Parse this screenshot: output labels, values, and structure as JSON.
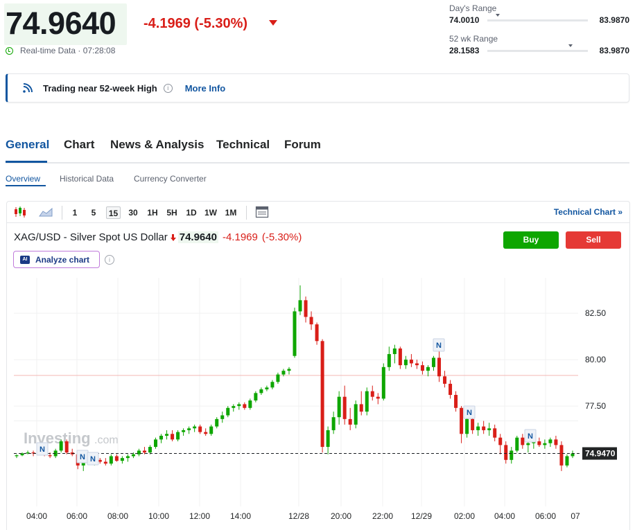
{
  "quote": {
    "price": "74.9640",
    "change": "-4.1969 (-5.30%)",
    "realtime": "Real-time Data · 07:28:08"
  },
  "day_range": {
    "label": "Day's Range",
    "low": "74.0010",
    "high": "83.9870",
    "position": 0.1
  },
  "wk52_range": {
    "label": "52 wk Range",
    "low": "28.1583",
    "high": "83.9870",
    "position": 0.83
  },
  "alert": {
    "text": "Trading near 52-week High",
    "link": "More Info"
  },
  "tabs": [
    "General",
    "Chart",
    "News & Analysis",
    "Technical",
    "Forum"
  ],
  "subtabs": [
    "Overview",
    "Historical Data",
    "Currency Converter"
  ],
  "toolbar": {
    "intervals": [
      "1",
      "5",
      "15",
      "30",
      "1H",
      "5H",
      "1D",
      "1W",
      "1M"
    ],
    "active_interval": "15",
    "technical_link": "Technical Chart »"
  },
  "instrument": {
    "name": "XAG/USD - Silver Spot US Dollar",
    "price": "74.9640",
    "change": "-4.1969",
    "change_pct": "(-5.30%)"
  },
  "buttons": {
    "buy": "Buy",
    "sell": "Sell",
    "analyze": "Analyze chart",
    "ai_badge": "AI"
  },
  "watermark": {
    "brand": "Investing",
    "suffix": ".com"
  },
  "colors": {
    "up": "#0ea600",
    "down": "#d91e18",
    "accent": "#1256a0"
  },
  "chart_data": {
    "type": "candlestick",
    "y_ticks": [
      "82.50",
      "80.00",
      "77.50"
    ],
    "y_tick_values": [
      82.5,
      80.0,
      77.5
    ],
    "x_ticks": [
      "04:00",
      "06:00",
      "08:00",
      "10:00",
      "12:00",
      "14:00",
      "12/28",
      "20:00",
      "22:00",
      "12/29",
      "02:00",
      "04:00",
      "06:00",
      "07"
    ],
    "last_price_label": "74.9470",
    "last_price": 74.947,
    "reference_line": 79.15,
    "news_markers": [
      "N",
      "N",
      "N",
      "N",
      "N",
      "N"
    ],
    "ohlc": [
      [
        74.8,
        74.9,
        74.7,
        74.85
      ],
      [
        74.85,
        75.0,
        74.8,
        74.95
      ],
      [
        74.95,
        75.1,
        74.9,
        75.0
      ],
      [
        75.0,
        75.1,
        74.8,
        74.95
      ],
      [
        74.95,
        75.2,
        74.9,
        75.1
      ],
      [
        75.1,
        75.2,
        74.8,
        74.85
      ],
      [
        74.85,
        75.0,
        74.7,
        74.8
      ],
      [
        74.8,
        75.2,
        74.7,
        75.1
      ],
      [
        75.1,
        75.7,
        75.0,
        75.6
      ],
      [
        75.6,
        75.7,
        74.9,
        75.0
      ],
      [
        75.0,
        75.2,
        74.8,
        74.9
      ],
      [
        74.9,
        75.0,
        74.1,
        74.3
      ],
      [
        74.3,
        74.8,
        74.0,
        74.6
      ],
      [
        74.6,
        74.8,
        74.4,
        74.5
      ],
      [
        74.5,
        74.7,
        74.3,
        74.6
      ],
      [
        74.6,
        74.7,
        74.4,
        74.5
      ],
      [
        74.5,
        74.7,
        74.3,
        74.4
      ],
      [
        74.4,
        74.9,
        74.3,
        74.8
      ],
      [
        74.8,
        74.9,
        74.5,
        74.55
      ],
      [
        74.55,
        74.8,
        74.4,
        74.7
      ],
      [
        74.7,
        74.9,
        74.5,
        74.8
      ],
      [
        74.8,
        75.0,
        74.7,
        74.9
      ],
      [
        74.9,
        75.2,
        74.8,
        75.1
      ],
      [
        75.1,
        75.3,
        74.9,
        75.0
      ],
      [
        75.0,
        75.4,
        74.9,
        75.3
      ],
      [
        75.3,
        75.8,
        75.2,
        75.7
      ],
      [
        75.7,
        76.0,
        75.5,
        75.9
      ],
      [
        75.9,
        76.2,
        75.7,
        76.0
      ],
      [
        76.0,
        76.2,
        75.6,
        75.7
      ],
      [
        75.7,
        76.2,
        75.6,
        76.1
      ],
      [
        76.1,
        76.3,
        75.9,
        76.2
      ],
      [
        76.2,
        76.4,
        76.0,
        76.3
      ],
      [
        76.3,
        76.5,
        76.1,
        76.4
      ],
      [
        76.4,
        76.5,
        76.0,
        76.1
      ],
      [
        76.1,
        76.3,
        75.9,
        76.0
      ],
      [
        76.0,
        76.5,
        75.9,
        76.4
      ],
      [
        76.4,
        76.9,
        76.3,
        76.8
      ],
      [
        76.8,
        77.2,
        76.6,
        77.0
      ],
      [
        77.0,
        77.5,
        76.9,
        77.4
      ],
      [
        77.4,
        77.6,
        77.2,
        77.5
      ],
      [
        77.5,
        77.7,
        77.3,
        77.6
      ],
      [
        77.6,
        77.7,
        77.3,
        77.4
      ],
      [
        77.4,
        77.9,
        77.3,
        77.8
      ],
      [
        77.8,
        78.3,
        77.7,
        78.2
      ],
      [
        78.2,
        78.5,
        78.1,
        78.4
      ],
      [
        78.4,
        78.6,
        78.3,
        78.5
      ],
      [
        78.5,
        78.9,
        78.4,
        78.8
      ],
      [
        78.8,
        79.3,
        78.7,
        79.2
      ],
      [
        79.2,
        79.5,
        79.1,
        79.4
      ],
      [
        79.4,
        79.6,
        79.2,
        79.5
      ],
      [
        80.2,
        82.8,
        80.1,
        82.6
      ],
      [
        82.6,
        84.0,
        82.4,
        83.2
      ],
      [
        83.2,
        83.4,
        82.0,
        82.3
      ],
      [
        82.3,
        82.6,
        81.6,
        81.9
      ],
      [
        81.9,
        82.0,
        80.8,
        81.0
      ],
      [
        81.0,
        81.1,
        75.0,
        75.3
      ],
      [
        75.3,
        76.4,
        74.9,
        76.2
      ],
      [
        76.2,
        77.2,
        76.0,
        76.9
      ],
      [
        76.9,
        78.3,
        76.5,
        78.0
      ],
      [
        78.0,
        78.6,
        76.5,
        76.8
      ],
      [
        76.8,
        77.4,
        76.2,
        76.5
      ],
      [
        76.5,
        77.8,
        76.3,
        77.6
      ],
      [
        77.6,
        78.3,
        77.0,
        77.2
      ],
      [
        77.2,
        78.5,
        77.0,
        78.3
      ],
      [
        78.3,
        78.6,
        77.8,
        78.0
      ],
      [
        78.0,
        78.2,
        77.6,
        77.9
      ],
      [
        77.9,
        79.8,
        77.8,
        79.6
      ],
      [
        79.6,
        80.7,
        79.4,
        80.3
      ],
      [
        80.3,
        80.8,
        79.8,
        80.6
      ],
      [
        80.6,
        80.7,
        79.5,
        79.7
      ],
      [
        79.7,
        80.2,
        79.5,
        80.0
      ],
      [
        80.0,
        80.3,
        79.6,
        79.8
      ],
      [
        79.8,
        80.0,
        79.5,
        79.7
      ],
      [
        79.7,
        79.9,
        79.2,
        79.4
      ],
      [
        79.4,
        79.7,
        79.1,
        79.6
      ],
      [
        79.6,
        80.2,
        79.4,
        80.1
      ],
      [
        80.1,
        80.5,
        78.8,
        79.1
      ],
      [
        79.1,
        79.4,
        78.5,
        78.7
      ],
      [
        78.7,
        78.9,
        77.9,
        78.1
      ],
      [
        78.1,
        78.3,
        77.2,
        77.4
      ],
      [
        77.4,
        77.5,
        75.5,
        76.0
      ],
      [
        76.0,
        77.1,
        75.8,
        76.8
      ],
      [
        76.8,
        77.0,
        76.0,
        76.2
      ],
      [
        76.2,
        76.6,
        75.9,
        76.4
      ],
      [
        76.4,
        76.7,
        76.0,
        76.2
      ],
      [
        76.2,
        76.6,
        75.9,
        76.3
      ],
      [
        76.3,
        76.5,
        75.6,
        75.8
      ],
      [
        75.8,
        76.0,
        74.9,
        75.4
      ],
      [
        75.4,
        75.6,
        74.4,
        74.6
      ],
      [
        74.6,
        75.3,
        74.4,
        75.1
      ],
      [
        75.1,
        75.9,
        75.0,
        75.8
      ],
      [
        75.8,
        76.0,
        75.2,
        75.4
      ],
      [
        75.4,
        75.6,
        75.0,
        75.5
      ],
      [
        75.5,
        75.8,
        75.2,
        75.6
      ],
      [
        75.6,
        75.8,
        75.3,
        75.4
      ],
      [
        75.4,
        75.7,
        75.2,
        75.5
      ],
      [
        75.5,
        75.8,
        75.3,
        75.7
      ],
      [
        75.7,
        75.9,
        75.2,
        75.4
      ],
      [
        75.4,
        75.6,
        74.0,
        74.3
      ],
      [
        74.3,
        74.9,
        74.2,
        74.8
      ],
      [
        74.8,
        75.1,
        74.7,
        74.95
      ]
    ]
  }
}
